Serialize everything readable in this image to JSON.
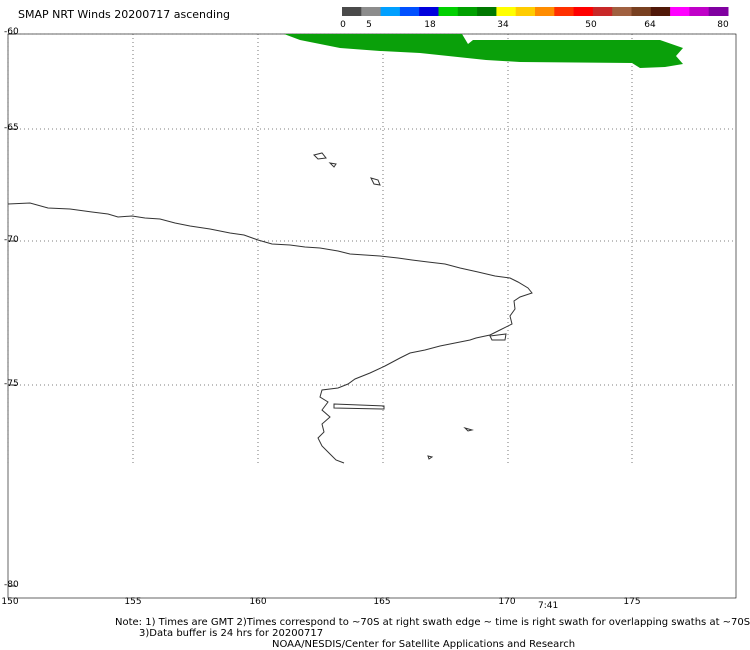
{
  "title": "SMAP NRT Winds 20200717 ascending",
  "colorbar": {
    "labels": [
      "0",
      "5",
      "18",
      "34",
      "50",
      "64",
      "80"
    ],
    "colors": [
      "#4a4a4a",
      "#8c8c8c",
      "#00a0ff",
      "#0050ff",
      "#0000dd",
      "#00d000",
      "#00a000",
      "#007800",
      "#ffff00",
      "#ffcc00",
      "#ff8c00",
      "#ff3000",
      "#ff0000",
      "#c82828",
      "#a06040",
      "#784020",
      "#501808",
      "#ff00ff",
      "#c000c8",
      "#8000a0"
    ]
  },
  "map": {
    "lat_labels": [
      "-60",
      "-65",
      "-70",
      "-75",
      "-80"
    ],
    "lon_labels": [
      "150",
      "155",
      "160",
      "165",
      "170",
      "175"
    ],
    "swath_color": "#0aa00a",
    "time_label": "7:41"
  },
  "notes": {
    "line1": "Note: 1) Times are GMT 2)Times correspond to ~70S at right swath edge ~ time is right swath for overlapping swaths at ~70S",
    "line2": "3)Data buffer is 24 hrs for 20200717",
    "line3": "NOAA/NESDIS/Center for Satellite Applications and Research"
  }
}
